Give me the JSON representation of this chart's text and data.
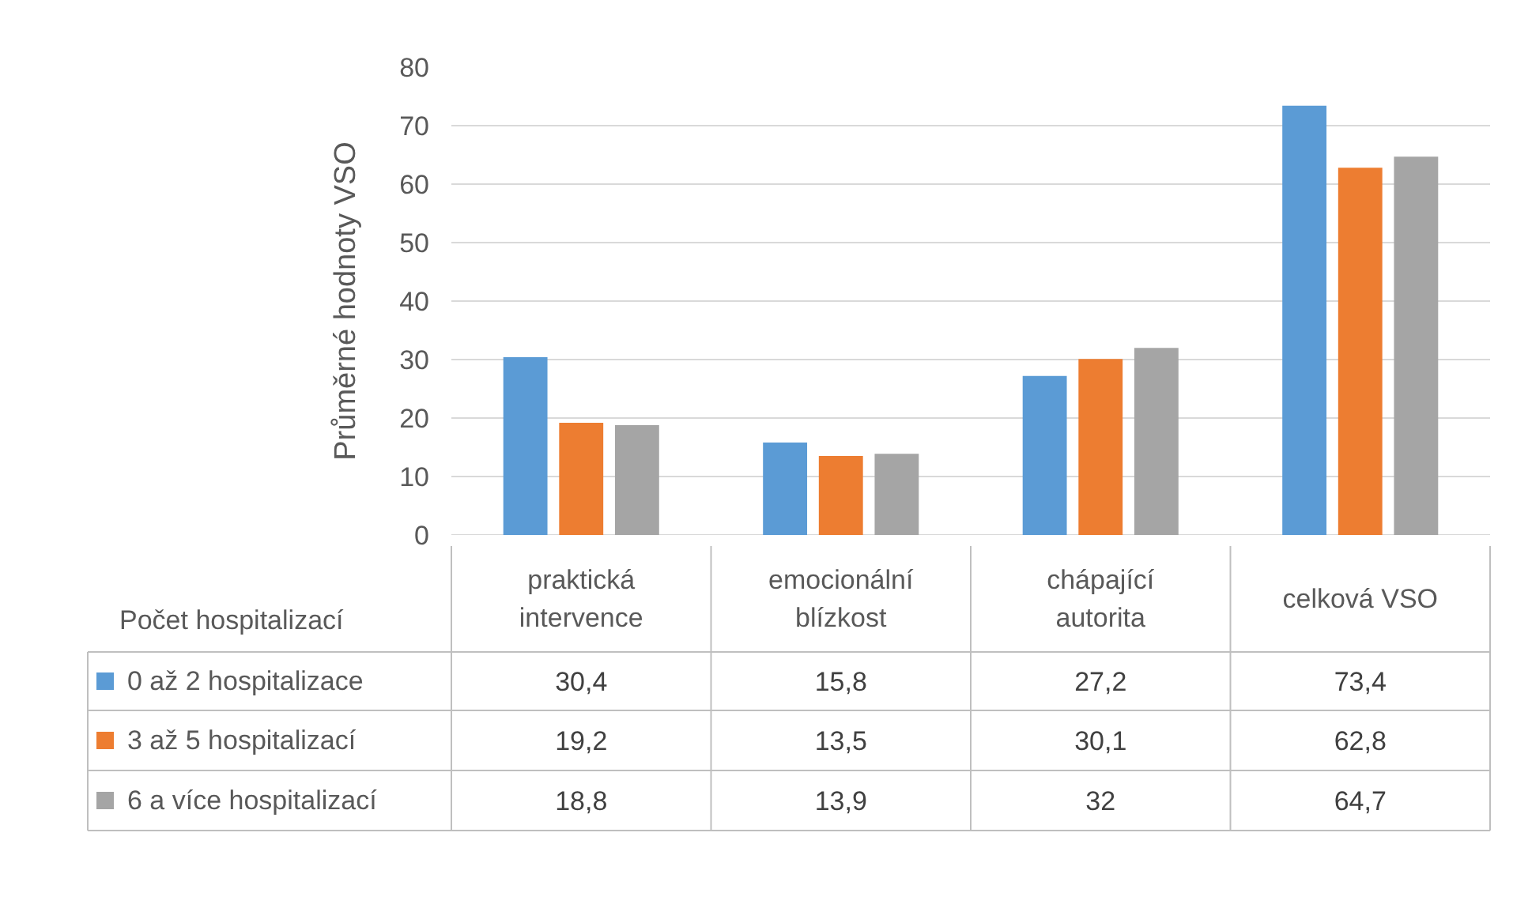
{
  "chart_data": {
    "type": "bar",
    "ylabel": "Průměrné hodnoty VSO",
    "legend_title": "Počet hospitalizací",
    "categories": [
      "praktická\nintervence",
      "emocionální\nblízkost",
      "chápající\nautorita",
      "celková VSO"
    ],
    "series": [
      {
        "name": "0 až 2 hospitalizace",
        "color": "#5b9bd5",
        "values": [
          30.4,
          15.8,
          27.2,
          73.4
        ],
        "value_labels": [
          "30,4",
          "15,8",
          "27,2",
          "73,4"
        ]
      },
      {
        "name": "3 až 5 hospitalizací",
        "color": "#ed7d31",
        "values": [
          19.2,
          13.5,
          30.1,
          62.8
        ],
        "value_labels": [
          "19,2",
          "13,5",
          "30,1",
          "62,8"
        ]
      },
      {
        "name": "6 a více hospitalizací",
        "color": "#a5a5a5",
        "values": [
          18.8,
          13.9,
          32,
          64.7
        ],
        "value_labels": [
          "18,8",
          "13,9",
          "32",
          "64,7"
        ]
      }
    ],
    "ylim": [
      0,
      80
    ],
    "yticks": [
      0,
      10,
      20,
      30,
      40,
      50,
      60,
      70,
      80
    ],
    "grid": "y",
    "legend": "bottom"
  }
}
